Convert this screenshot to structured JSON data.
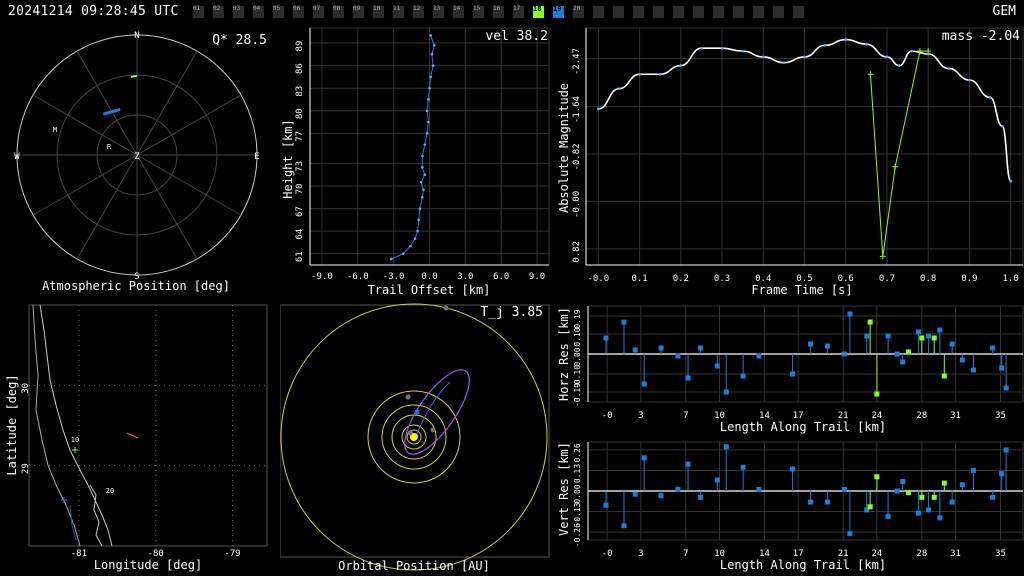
{
  "header": {
    "timestamp": "20241214 09:28:45 UTC",
    "shower": "GEM",
    "stations": [
      {
        "label": "01",
        "state": "off"
      },
      {
        "label": "02",
        "state": "off"
      },
      {
        "label": "03",
        "state": "off"
      },
      {
        "label": "04",
        "state": "off"
      },
      {
        "label": "05",
        "state": "off"
      },
      {
        "label": "06",
        "state": "off"
      },
      {
        "label": "07",
        "state": "off"
      },
      {
        "label": "08",
        "state": "off"
      },
      {
        "label": "09",
        "state": "off"
      },
      {
        "label": "10",
        "state": "off"
      },
      {
        "label": "11",
        "state": "off"
      },
      {
        "label": "12",
        "state": "off"
      },
      {
        "label": "13",
        "state": "off"
      },
      {
        "label": "14",
        "state": "off"
      },
      {
        "label": "15",
        "state": "off"
      },
      {
        "label": "16",
        "state": "off"
      },
      {
        "label": "17",
        "state": "off"
      },
      {
        "label": "18",
        "state": "green"
      },
      {
        "label": "19",
        "state": "blue"
      },
      {
        "label": "20",
        "state": "off"
      },
      {
        "label": "",
        "state": "off"
      },
      {
        "label": "",
        "state": "off"
      },
      {
        "label": "",
        "state": "off"
      },
      {
        "label": "",
        "state": "off"
      },
      {
        "label": "",
        "state": "off"
      },
      {
        "label": "",
        "state": "off"
      },
      {
        "label": "",
        "state": "off"
      },
      {
        "label": "",
        "state": "off"
      },
      {
        "label": "",
        "state": "off"
      },
      {
        "label": "",
        "state": "off"
      },
      {
        "label": "",
        "state": "off"
      }
    ]
  },
  "colors": {
    "green": "#88ff22",
    "blue": "#1a7fd8",
    "lightblue": "#5aaaff",
    "grid": "#333333",
    "axis": "#ffffff",
    "yellow": "#d0d040",
    "purple": "#a050ff"
  },
  "polar": {
    "xlabel": "Atmospheric Position [deg]",
    "annotation": "Q* 28.5",
    "north": "N",
    "south": "S",
    "east": "E",
    "west": "W",
    "zenith": "Z",
    "station_marks": [
      "M",
      "R"
    ]
  },
  "height_plot": {
    "xlabel": "Trail Offset [km]",
    "ylabel": "Height [km]",
    "annotation": "vel 38.2"
  },
  "magnitude_plot": {
    "xlabel": "Frame Time [s]",
    "ylabel": "Absolute Magnitude",
    "annotation": "mass -2.04"
  },
  "map_plot": {
    "xlabel": "Longitude [deg]",
    "ylabel": "Latitude [deg]"
  },
  "orbit_plot": {
    "xlabel": "Orbital Position [AU]",
    "annotation": "T_j 3.85"
  },
  "horz_plot": {
    "xlabel": "Length Along Trail [km]",
    "ylabel": "Horz Res [km]"
  },
  "vert_plot": {
    "xlabel": "Length Along Trail [km]",
    "ylabel": "Vert Res [km]"
  },
  "chart_data": [
    {
      "type": "scatter",
      "name": "polar",
      "blue_track": [
        [
          -0.28,
          0.34
        ],
        [
          -0.14,
          0.38
        ]
      ],
      "green_track": [
        [
          -0.05,
          0.65
        ],
        [
          0.0,
          0.66
        ]
      ]
    },
    {
      "type": "line",
      "name": "height",
      "xticks": [
        "-9.0",
        "-6.0",
        "-3.0",
        "0.0",
        "3.0",
        "6.0",
        "9.0"
      ],
      "yticks": [
        "61",
        "64",
        "67",
        "70",
        "73",
        "77",
        "80",
        "83",
        "86",
        "89"
      ],
      "xlim": [
        -10,
        10
      ],
      "ylim": [
        59.5,
        91
      ],
      "points": [
        [
          0.1,
          90.0
        ],
        [
          0.4,
          88.7
        ],
        [
          0.2,
          87.5
        ],
        [
          0.3,
          86.0
        ],
        [
          0.1,
          84.5
        ],
        [
          0.0,
          83.0
        ],
        [
          -0.1,
          81.5
        ],
        [
          -0.2,
          80.0
        ],
        [
          -0.1,
          78.5
        ],
        [
          -0.2,
          77.0
        ],
        [
          -0.4,
          75.5
        ],
        [
          -0.6,
          74.0
        ],
        [
          -0.6,
          72.5
        ],
        [
          -0.4,
          71.5
        ],
        [
          -0.7,
          70.5
        ],
        [
          -0.5,
          69.5
        ],
        [
          -0.6,
          68.5
        ],
        [
          -0.8,
          67.0
        ],
        [
          -0.9,
          65.5
        ],
        [
          -1.0,
          64.0
        ],
        [
          -1.2,
          63.0
        ],
        [
          -1.6,
          62.0
        ],
        [
          -2.2,
          61.0
        ],
        [
          -3.2,
          60.3
        ]
      ]
    },
    {
      "type": "line",
      "name": "magnitude",
      "xticks": [
        "-0.0",
        "0.1",
        "0.2",
        "0.3",
        "0.4",
        "0.5",
        "0.6",
        "0.7",
        "0.8",
        "0.9",
        "1.0"
      ],
      "yticks": [
        "-2.47",
        "-1.64",
        "-0.82",
        "-0.00",
        "0.82"
      ],
      "xlim": [
        -0.03,
        1.03
      ],
      "ylim": [
        -3.0,
        1.1
      ],
      "blue": [
        [
          0.0,
          -1.6
        ],
        [
          0.05,
          -1.95
        ],
        [
          0.1,
          -2.2
        ],
        [
          0.15,
          -2.2
        ],
        [
          0.2,
          -2.35
        ],
        [
          0.25,
          -2.65
        ],
        [
          0.3,
          -2.65
        ],
        [
          0.35,
          -2.6
        ],
        [
          0.4,
          -2.5
        ],
        [
          0.45,
          -2.4
        ],
        [
          0.5,
          -2.5
        ],
        [
          0.55,
          -2.7
        ],
        [
          0.6,
          -2.8
        ],
        [
          0.65,
          -2.72
        ],
        [
          0.7,
          -2.5
        ],
        [
          0.73,
          -2.35
        ],
        [
          0.76,
          -2.6
        ],
        [
          0.8,
          -2.55
        ],
        [
          0.85,
          -2.3
        ],
        [
          0.9,
          -2.1
        ],
        [
          0.95,
          -1.8
        ],
        [
          0.98,
          -1.3
        ],
        [
          1.0,
          -0.35
        ]
      ],
      "green": [
        [
          0.66,
          -2.2
        ],
        [
          0.69,
          0.95
        ],
        [
          0.72,
          -0.6
        ],
        [
          0.78,
          -2.6
        ],
        [
          0.8,
          -2.6
        ]
      ]
    },
    {
      "type": "scatter",
      "name": "map",
      "xticks": [
        "-81",
        "-80",
        "-79"
      ],
      "yticks": [
        "29",
        "30"
      ],
      "xlim": [
        -81.65,
        -78.55
      ],
      "ylim": [
        28.0,
        31.0
      ]
    },
    {
      "type": "scatter",
      "name": "orbit"
    },
    {
      "type": "scatter",
      "name": "horz_res",
      "xticks": [
        "-0",
        "3",
        "7",
        "10",
        "14",
        "17",
        "21",
        "24",
        "28",
        "31",
        "35"
      ],
      "yticks": [
        "0.19",
        "0.10",
        "0.00",
        "-0.10",
        "-0.19"
      ],
      "xlim": [
        -1.7,
        37
      ],
      "ylim": [
        -0.24,
        0.24
      ],
      "blue": [
        [
          -0.1,
          0.08
        ],
        [
          1.5,
          0.16
        ],
        [
          2.5,
          0.02
        ],
        [
          3.3,
          -0.15
        ],
        [
          4.8,
          0.03
        ],
        [
          6.3,
          -0.01
        ],
        [
          7.2,
          -0.12
        ],
        [
          8.3,
          0.03
        ],
        [
          9.8,
          -0.06
        ],
        [
          10.6,
          -0.19
        ],
        [
          12.1,
          -0.11
        ],
        [
          13.5,
          -0.01
        ],
        [
          16.5,
          -0.1
        ],
        [
          18.1,
          0.05
        ],
        [
          19.6,
          0.04
        ],
        [
          21.1,
          0.0
        ],
        [
          21.6,
          0.2
        ],
        [
          23.1,
          0.09
        ],
        [
          25.0,
          0.09
        ],
        [
          25.8,
          0.0
        ],
        [
          26.3,
          -0.04
        ],
        [
          27.7,
          0.11
        ],
        [
          28.6,
          0.09
        ],
        [
          29.6,
          0.12
        ],
        [
          30.7,
          0.05
        ],
        [
          31.6,
          -0.03
        ],
        [
          32.6,
          -0.08
        ],
        [
          34.3,
          0.03
        ],
        [
          35.1,
          -0.07
        ],
        [
          35.5,
          -0.17
        ]
      ],
      "green": [
        [
          23.4,
          0.16
        ],
        [
          24.0,
          -0.2
        ],
        [
          26.8,
          0.01
        ],
        [
          28.0,
          0.08
        ],
        [
          29.1,
          0.08
        ],
        [
          30.0,
          -0.11
        ]
      ]
    },
    {
      "type": "scatter",
      "name": "vert_res",
      "xticks": [
        "-0",
        "3",
        "7",
        "10",
        "14",
        "17",
        "21",
        "24",
        "28",
        "31",
        "35"
      ],
      "yticks": [
        "0.26",
        "0.13",
        "0.00",
        "-0.13",
        "-0.26"
      ],
      "xlim": [
        -1.7,
        37
      ],
      "ylim": [
        -0.31,
        0.31
      ],
      "blue": [
        [
          -0.1,
          -0.09
        ],
        [
          1.5,
          -0.22
        ],
        [
          2.5,
          -0.02
        ],
        [
          3.3,
          0.21
        ],
        [
          4.8,
          -0.03
        ],
        [
          6.3,
          0.01
        ],
        [
          7.2,
          0.17
        ],
        [
          8.3,
          -0.04
        ],
        [
          9.8,
          0.07
        ],
        [
          10.6,
          0.28
        ],
        [
          12.1,
          0.15
        ],
        [
          13.5,
          0.01
        ],
        [
          16.5,
          0.14
        ],
        [
          18.1,
          -0.07
        ],
        [
          19.6,
          -0.07
        ],
        [
          21.1,
          0.01
        ],
        [
          21.6,
          -0.27
        ],
        [
          23.1,
          -0.12
        ],
        [
          25.0,
          -0.16
        ],
        [
          25.8,
          0.0
        ],
        [
          26.3,
          0.06
        ],
        [
          27.7,
          -0.14
        ],
        [
          28.6,
          -0.12
        ],
        [
          29.6,
          -0.17
        ],
        [
          30.7,
          -0.07
        ],
        [
          31.6,
          0.04
        ],
        [
          32.6,
          0.13
        ],
        [
          34.3,
          -0.04
        ],
        [
          35.1,
          0.11
        ],
        [
          35.5,
          0.26
        ]
      ],
      "green": [
        [
          23.4,
          -0.1
        ],
        [
          24.0,
          0.09
        ],
        [
          26.8,
          -0.01
        ],
        [
          28.0,
          -0.04
        ],
        [
          29.1,
          -0.04
        ],
        [
          30.0,
          0.05
        ]
      ]
    }
  ]
}
